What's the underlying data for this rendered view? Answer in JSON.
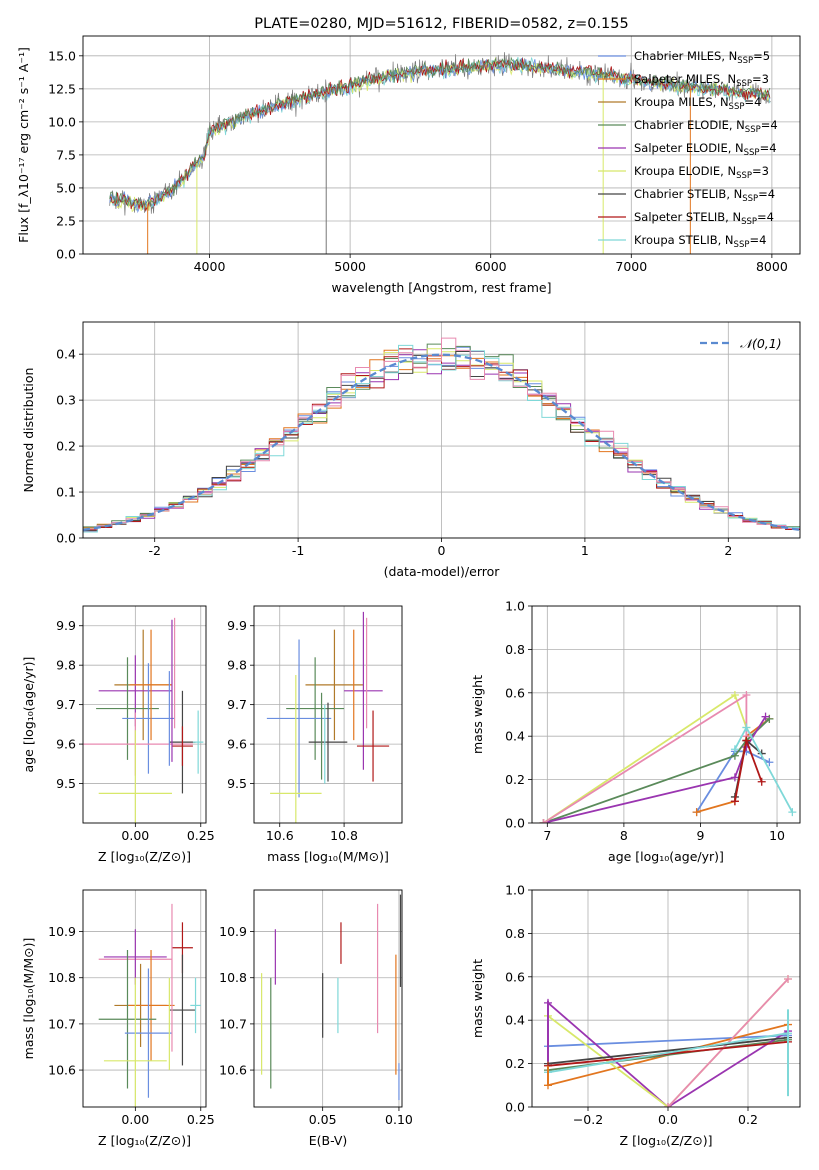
{
  "colors": {
    "Chabrier MILES": "#6a8ee0",
    "Salpeter MILES": "#e2761f",
    "Kroupa MILES": "#b07a2a",
    "Chabrier ELODIE": "#5a8a5a",
    "Salpeter ELODIE": "#9a35b0",
    "Kroupa ELODIE": "#d8e86a",
    "Chabrier STELIB": "#444444",
    "Salpeter STELIB": "#b01818",
    "Kroupa STELIB": "#7fd8d8",
    "pink": "#e88ab0",
    "data": "#777777",
    "gauss": "#5a8ad0"
  },
  "chart_data": [
    {
      "id": "spectrum",
      "type": "line",
      "title": "PLATE=0280, MJD=51612, FIBERID=0582, z=0.155",
      "xlabel": "wavelength [Angstrom, rest frame]",
      "ylabel": "Flux [f_λ10⁻¹⁷ erg cm⁻² s⁻¹ A⁻¹]",
      "xlim": [
        3100,
        8200
      ],
      "ylim": [
        0,
        16.5
      ],
      "xticks": [
        4000,
        5000,
        6000,
        7000,
        8000
      ],
      "yticks": [
        0.0,
        2.5,
        5.0,
        7.5,
        10.0,
        12.5,
        15.0
      ],
      "legend_position": "top-right",
      "legend": [
        {
          "model": "Chabrier MILES",
          "label": "Chabrier MILES, N",
          "sub": "SSP",
          "n": "=5"
        },
        {
          "model": "Salpeter MILES",
          "label": "Salpeter MILES, N",
          "sub": "SSP",
          "n": "=3"
        },
        {
          "model": "Kroupa MILES",
          "label": "Kroupa MILES, N",
          "sub": "SSP",
          "n": "=4"
        },
        {
          "model": "Chabrier ELODIE",
          "label": "Chabrier ELODIE, N",
          "sub": "SSP",
          "n": "=4"
        },
        {
          "model": "Salpeter ELODIE",
          "label": "Salpeter ELODIE, N",
          "sub": "SSP",
          "n": "=4"
        },
        {
          "model": "Kroupa ELODIE",
          "label": "Kroupa ELODIE, N",
          "sub": "SSP",
          "n": "=3"
        },
        {
          "model": "Chabrier STELIB",
          "label": "Chabrier STELIB, N",
          "sub": "SSP",
          "n": "=4"
        },
        {
          "model": "Salpeter STELIB",
          "label": "Salpeter STELIB, N",
          "sub": "SSP",
          "n": "=4"
        },
        {
          "model": "Kroupa STELIB",
          "label": "Kroupa STELIB, N",
          "sub": "SSP",
          "n": "=4"
        }
      ],
      "continuum": {
        "x": [
          3290,
          3400,
          3550,
          3700,
          3800,
          3900,
          3960,
          4000,
          4100,
          4300,
          4500,
          4800,
          5000,
          5200,
          5500,
          5800,
          6000,
          6200,
          6500,
          6800,
          7000,
          7200,
          7500,
          7700,
          7900,
          8000
        ],
        "y": [
          4.2,
          4.0,
          3.7,
          4.6,
          5.5,
          6.8,
          7.3,
          9.2,
          9.8,
          10.6,
          11.3,
          12.2,
          12.7,
          13.3,
          13.8,
          14.1,
          14.3,
          14.3,
          13.9,
          13.6,
          13.2,
          12.9,
          12.6,
          12.3,
          12.1,
          12.0
        ]
      },
      "drops": [
        {
          "x": 3560,
          "model": "Salpeter MILES"
        },
        {
          "x": 3910,
          "model": "Kroupa ELODIE"
        },
        {
          "x": 4830,
          "model": "data"
        },
        {
          "x": 6800,
          "model": "Kroupa ELODIE"
        },
        {
          "x": 7420,
          "model": "Salpeter MILES"
        }
      ]
    },
    {
      "id": "residual-histogram",
      "type": "line",
      "xlabel": "(data-model)/error",
      "ylabel": "Normed distribution",
      "xlim": [
        -2.5,
        2.5
      ],
      "ylim": [
        0,
        0.47
      ],
      "xticks": [
        -2,
        -1,
        0,
        1,
        2
      ],
      "yticks": [
        0.0,
        0.1,
        0.2,
        0.3,
        0.4
      ],
      "legend_position": "top-right",
      "gaussian_label": "𝒩(0,1)",
      "bins": {
        "start": -2.5,
        "width": 0.1,
        "count": 50
      }
    },
    {
      "id": "age-vs-Z",
      "type": "scatter",
      "xlabel": "Z [log₁₀(Z/Z⊙)]",
      "ylabel": "age  [log₁₀(age/yr)]",
      "xlim": [
        -0.2,
        0.27
      ],
      "ylim": [
        9.4,
        9.95
      ],
      "xticks": [
        0.0,
        0.25
      ],
      "xticklabels": [
        "0.00",
        "0.25"
      ],
      "yticks": [
        9.5,
        9.6,
        9.7,
        9.8,
        9.9
      ],
      "points": [
        {
          "model": "Kroupa MILES",
          "x": 0.03,
          "xerr": 0.11,
          "y": 9.75,
          "yerr": 0.14
        },
        {
          "model": "Salpeter ELODIE",
          "x": 0.0,
          "xerr": 0.14,
          "y": 9.735,
          "yerr": 0.09
        },
        {
          "model": "Chabrier ELODIE",
          "x": -0.03,
          "xerr": 0.12,
          "y": 9.69,
          "yerr": 0.13
        },
        {
          "model": "Chabrier MILES",
          "x": 0.05,
          "xerr": 0.1,
          "y": 9.665,
          "yerr": 0.14
        },
        {
          "model": "Salpeter MILES",
          "x": 0.06,
          "xerr": 0.08,
          "y": 9.75,
          "yerr": 0.14
        },
        {
          "model": "pink",
          "x": 0.0,
          "xerr": 0.22,
          "y": 9.6,
          "yerr": 0.08
        },
        {
          "model": "Chabrier STELIB",
          "x": 0.18,
          "xerr": 0.05,
          "y": 9.605,
          "yerr": 0.13
        },
        {
          "model": "Salpeter STELIB",
          "x": 0.18,
          "xerr": 0.04,
          "y": 9.595,
          "yerr": 0.05
        },
        {
          "model": "Kroupa ELODIE",
          "x": 0.0,
          "xerr": 0.14,
          "y": 9.475,
          "yerr": 0.16
        },
        {
          "model": "Kroupa STELIB",
          "x": 0.24,
          "xerr": 0.02,
          "y": 9.605,
          "yerr": 0.08
        },
        {
          "model": "Salpeter ELODIE",
          "x": 0.14,
          "xerr": 0.0,
          "y": 9.735,
          "yerr": 0.18
        },
        {
          "model": "Chabrier MILES",
          "x": 0.13,
          "xerr": 0.0,
          "y": 9.665,
          "yerr": 0.12
        },
        {
          "model": "pink",
          "x": 0.15,
          "xerr": 0.0,
          "y": 9.78,
          "yerr": 0.14
        }
      ]
    },
    {
      "id": "age-vs-mass",
      "type": "scatter",
      "xlabel": "mass [log₁₀(M/M⊙)]",
      "ylabel": "",
      "xlim": [
        10.52,
        10.98
      ],
      "ylim": [
        9.4,
        9.95
      ],
      "xticks": [
        10.6,
        10.8
      ],
      "xticklabels": [
        "10.6",
        "10.8"
      ],
      "yticks": [
        9.5,
        9.6,
        9.7,
        9.8,
        9.9
      ],
      "points": [
        {
          "model": "Kroupa MILES",
          "x": 10.77,
          "xerr": 0.09,
          "y": 9.75,
          "yerr": 0.14
        },
        {
          "model": "Salpeter ELODIE",
          "x": 10.86,
          "xerr": 0.06,
          "y": 9.735,
          "yerr": 0.2
        },
        {
          "model": "Chabrier ELODIE",
          "x": 10.71,
          "xerr": 0.09,
          "y": 9.69,
          "yerr": 0.13
        },
        {
          "model": "Chabrier MILES",
          "x": 10.66,
          "xerr": 0.1,
          "y": 9.665,
          "yerr": 0.2
        },
        {
          "model": "Salpeter MILES",
          "x": 10.83,
          "xerr": 0.0,
          "y": 9.75,
          "yerr": 0.14
        },
        {
          "model": "pink",
          "x": 10.87,
          "xerr": 0.0,
          "y": 9.78,
          "yerr": 0.14
        },
        {
          "model": "Chabrier STELIB",
          "x": 10.75,
          "xerr": 0.06,
          "y": 9.605,
          "yerr": 0.1
        },
        {
          "model": "Salpeter STELIB",
          "x": 10.89,
          "xerr": 0.05,
          "y": 9.595,
          "yerr": 0.09
        },
        {
          "model": "Kroupa ELODIE",
          "x": 10.65,
          "xerr": 0.08,
          "y": 9.475,
          "yerr": 0.3
        },
        {
          "model": "Kroupa STELIB",
          "x": 10.74,
          "xerr": 0.0,
          "y": 9.6,
          "yerr": 0.1
        },
        {
          "model": "Chabrier ELODIE",
          "x": 10.73,
          "xerr": 0.0,
          "y": 9.62,
          "yerr": 0.11
        }
      ]
    },
    {
      "id": "weight-vs-age",
      "type": "line",
      "xlabel": "age  [log₁₀(age/yr)]",
      "ylabel": "mass weight",
      "xlim": [
        6.8,
        10.3
      ],
      "ylim": [
        0,
        1.0
      ],
      "xticks": [
        7,
        8,
        9,
        10
      ],
      "yticks": [
        0.0,
        0.2,
        0.4,
        0.6,
        0.8,
        1.0
      ],
      "series": [
        {
          "model": "Chabrier MILES",
          "x": [
            8.95,
            9.45,
            9.6,
            9.9
          ],
          "y": [
            0.05,
            0.33,
            0.33,
            0.28
          ]
        },
        {
          "model": "Salpeter MILES",
          "x": [
            8.95,
            9.45,
            9.6,
            9.9
          ],
          "y": [
            0.05,
            0.1,
            0.4,
            0.48
          ]
        },
        {
          "model": "Chabrier ELODIE",
          "x": [
            6.95,
            9.45,
            9.6,
            9.9
          ],
          "y": [
            0.0,
            0.31,
            0.38,
            0.48
          ]
        },
        {
          "model": "Salpeter ELODIE",
          "x": [
            6.95,
            9.45,
            9.6,
            9.85
          ],
          "y": [
            0.0,
            0.21,
            0.35,
            0.49
          ]
        },
        {
          "model": "Kroupa ELODIE",
          "x": [
            6.95,
            9.45,
            9.6
          ],
          "y": [
            0.0,
            0.59,
            0.44
          ]
        },
        {
          "model": "pink",
          "x": [
            6.95,
            9.6,
            9.6
          ],
          "y": [
            0.0,
            0.59,
            0.4
          ]
        },
        {
          "model": "Chabrier STELIB",
          "x": [
            9.45,
            9.6,
            9.8
          ],
          "y": [
            0.12,
            0.38,
            0.32
          ]
        },
        {
          "model": "Salpeter STELIB",
          "x": [
            9.45,
            9.6,
            9.8
          ],
          "y": [
            0.1,
            0.38,
            0.19
          ]
        },
        {
          "model": "Kroupa STELIB",
          "x": [
            9.45,
            9.6,
            10.2
          ],
          "y": [
            0.34,
            0.44,
            0.05
          ]
        }
      ]
    },
    {
      "id": "mass-vs-Z",
      "type": "scatter",
      "xlabel": "Z [log₁₀(Z/Z⊙)]",
      "ylabel": "mass [log₁₀(M/M⊙)]",
      "xlim": [
        -0.2,
        0.27
      ],
      "ylim": [
        10.52,
        10.99
      ],
      "xticks": [
        0.0,
        0.25
      ],
      "xticklabels": [
        "0.00",
        "0.25"
      ],
      "yticks": [
        10.6,
        10.7,
        10.8,
        10.9
      ],
      "points": [
        {
          "model": "pink",
          "x": 0.0,
          "xerr": 0.14,
          "y": 10.84,
          "yerr": 0.0
        },
        {
          "model": "Salpeter ELODIE",
          "x": 0.0,
          "xerr": 0.12,
          "y": 10.845,
          "yerr": 0.06
        },
        {
          "model": "Salpeter STELIB",
          "x": 0.18,
          "xerr": 0.04,
          "y": 10.865,
          "yerr": 0.055
        },
        {
          "model": "Kroupa MILES",
          "x": 0.02,
          "xerr": 0.1,
          "y": 10.74,
          "yerr": 0.09
        },
        {
          "model": "Salpeter MILES",
          "x": 0.06,
          "xerr": 0.09,
          "y": 10.74,
          "yerr": 0.12
        },
        {
          "model": "Chabrier STELIB",
          "x": 0.18,
          "xerr": 0.05,
          "y": 10.73,
          "yerr": 0.12
        },
        {
          "model": "Chabrier ELODIE",
          "x": -0.03,
          "xerr": 0.11,
          "y": 10.71,
          "yerr": 0.15
        },
        {
          "model": "Chabrier MILES",
          "x": 0.05,
          "xerr": 0.09,
          "y": 10.68,
          "yerr": 0.14
        },
        {
          "model": "Kroupa ELODIE",
          "x": 0.0,
          "xerr": 0.12,
          "y": 10.62,
          "yerr": 0.18
        },
        {
          "model": "Kroupa STELIB",
          "x": 0.23,
          "xerr": 0.02,
          "y": 10.74,
          "yerr": 0.06
        },
        {
          "model": "pink",
          "x": 0.14,
          "xerr": 0.0,
          "y": 10.8,
          "yerr": 0.16
        },
        {
          "model": "Kroupa ELODIE",
          "x": 0.13,
          "xerr": 0.0,
          "y": 10.7,
          "yerr": 0.1
        }
      ]
    },
    {
      "id": "mass-vs-ebv",
      "type": "scatter",
      "xlabel": "E(B-V)",
      "ylabel": "",
      "xlim": [
        0.005,
        0.102
      ],
      "ylim": [
        10.52,
        10.99
      ],
      "xticks": [
        0.05,
        0.1
      ],
      "xticklabels": [
        "0.05",
        "0.10"
      ],
      "yticks": [
        10.6,
        10.7,
        10.8,
        10.9
      ],
      "points": [
        {
          "model": "Kroupa ELODIE",
          "x": 0.01,
          "xerr": 0.0,
          "y": 10.7,
          "yerr": 0.11
        },
        {
          "model": "Chabrier ELODIE",
          "x": 0.016,
          "xerr": 0.0,
          "y": 10.68,
          "yerr": 0.12
        },
        {
          "model": "Salpeter ELODIE",
          "x": 0.019,
          "xerr": 0.0,
          "y": 10.845,
          "yerr": 0.06
        },
        {
          "model": "Chabrier STELIB",
          "x": 0.05,
          "xerr": 0.0,
          "y": 10.74,
          "yerr": 0.07
        },
        {
          "model": "Kroupa STELIB",
          "x": 0.06,
          "xerr": 0.0,
          "y": 10.74,
          "yerr": 0.06
        },
        {
          "model": "Salpeter STELIB",
          "x": 0.062,
          "xerr": 0.0,
          "y": 10.875,
          "yerr": 0.045
        },
        {
          "model": "pink",
          "x": 0.086,
          "xerr": 0.0,
          "y": 10.82,
          "yerr": 0.14
        },
        {
          "model": "Salpeter MILES",
          "x": 0.098,
          "xerr": 0.0,
          "y": 10.72,
          "yerr": 0.13
        },
        {
          "model": "Chabrier MILES",
          "x": 0.1,
          "xerr": 0.0,
          "y": 10.575,
          "yerr": 0.04
        },
        {
          "model": "Chabrier STELIB",
          "x": 0.101,
          "xerr": 0.0,
          "y": 10.88,
          "yerr": 0.1
        }
      ]
    },
    {
      "id": "weight-vs-Z",
      "type": "line",
      "xlabel": "Z [log₁₀(Z/Z⊙)]",
      "ylabel": "mass weight",
      "xlim": [
        -0.34,
        0.33
      ],
      "ylim": [
        0,
        1.0
      ],
      "xticks": [
        -0.2,
        0.0,
        0.2
      ],
      "xticklabels": [
        "−0.2",
        "0.0",
        "0.2"
      ],
      "yticks": [
        0.0,
        0.2,
        0.4,
        0.6,
        0.8,
        1.0
      ],
      "series": [
        {
          "model": "Chabrier MILES",
          "x": [
            -0.3,
            0.3
          ],
          "y": [
            0.28,
            0.33
          ]
        },
        {
          "model": "Salpeter MILES",
          "x": [
            -0.3,
            0.3
          ],
          "y": [
            0.1,
            0.38
          ]
        },
        {
          "model": "Chabrier ELODIE",
          "x": [
            -0.3,
            0.3
          ],
          "y": [
            0.17,
            0.31
          ]
        },
        {
          "model": "Salpeter ELODIE",
          "x": [
            -0.3,
            0.0,
            0.3
          ],
          "y": [
            0.48,
            0.0,
            0.35
          ]
        },
        {
          "model": "Kroupa ELODIE",
          "x": [
            -0.3,
            0.0,
            0.3
          ],
          "y": [
            0.42,
            0.0,
            0.59
          ]
        },
        {
          "model": "pink",
          "x": [
            0.0,
            0.3
          ],
          "y": [
            0.0,
            0.59
          ]
        },
        {
          "model": "Chabrier STELIB",
          "x": [
            -0.3,
            0.3
          ],
          "y": [
            0.2,
            0.32
          ]
        },
        {
          "model": "Salpeter STELIB",
          "x": [
            -0.3,
            0.3
          ],
          "y": [
            0.19,
            0.3
          ]
        },
        {
          "model": "Kroupa STELIB",
          "x": [
            -0.3,
            0.3
          ],
          "y": [
            0.16,
            0.34
          ]
        }
      ],
      "vertical_marks": [
        {
          "model": "Salpeter ELODIE",
          "x": -0.3,
          "y": [
            0.21,
            0.49
          ]
        },
        {
          "model": "Salpeter MILES",
          "x": -0.3,
          "y": [
            0.1,
            0.19
          ]
        },
        {
          "model": "Kroupa STELIB",
          "x": 0.3,
          "y": [
            0.05,
            0.45
          ]
        }
      ]
    }
  ]
}
